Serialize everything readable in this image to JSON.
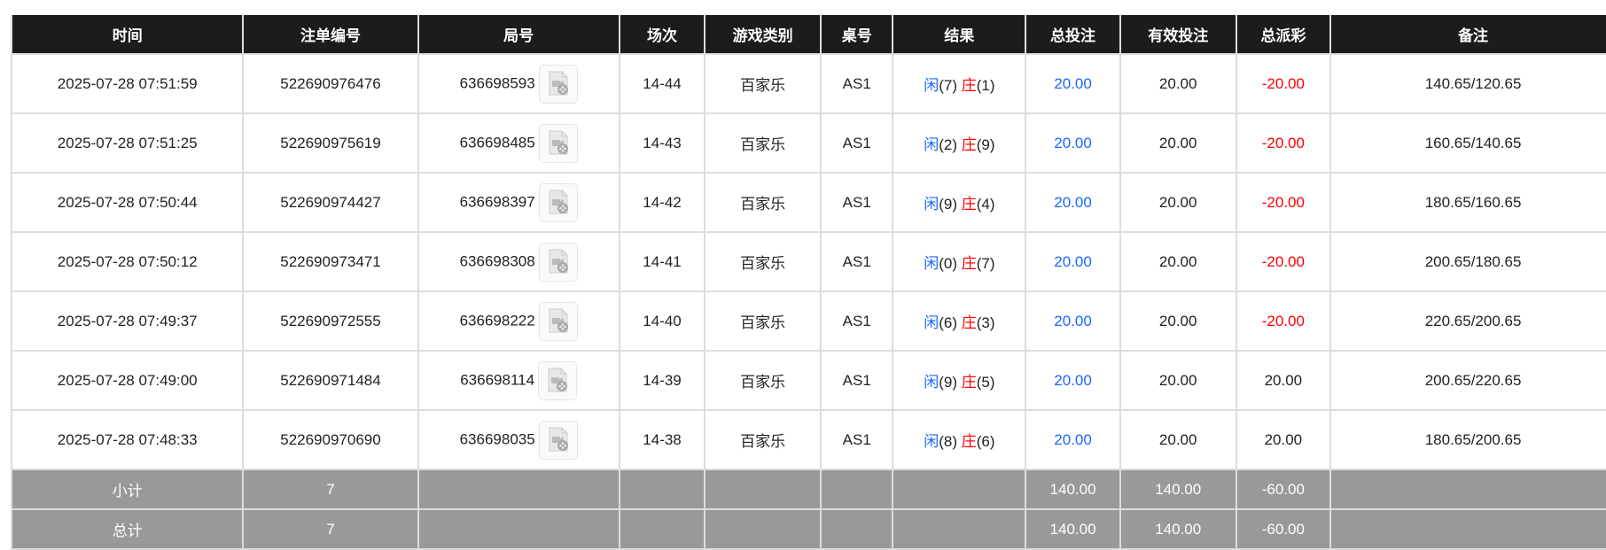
{
  "headers": [
    "时间",
    "注单编号",
    "局号",
    "场次",
    "游戏类别",
    "桌号",
    "结果",
    "总投注",
    "有效投注",
    "总派彩",
    "备注"
  ],
  "rows": [
    {
      "time": "2025-07-28 07:51:59",
      "bet_id": "522690976476",
      "round": "636698593",
      "session": "14-44",
      "game": "百家乐",
      "table": "AS1",
      "player_label": "闲",
      "player": "(7)",
      "banker_label": "庄",
      "banker": "(1)",
      "total_bet": "20.00",
      "valid_bet": "20.00",
      "payout": "-20.00",
      "payout_negative": true,
      "note": "140.65/120.65"
    },
    {
      "time": "2025-07-28 07:51:25",
      "bet_id": "522690975619",
      "round": "636698485",
      "session": "14-43",
      "game": "百家乐",
      "table": "AS1",
      "player_label": "闲",
      "player": "(2)",
      "banker_label": "庄",
      "banker": "(9)",
      "total_bet": "20.00",
      "valid_bet": "20.00",
      "payout": "-20.00",
      "payout_negative": true,
      "note": "160.65/140.65"
    },
    {
      "time": "2025-07-28 07:50:44",
      "bet_id": "522690974427",
      "round": "636698397",
      "session": "14-42",
      "game": "百家乐",
      "table": "AS1",
      "player_label": "闲",
      "player": "(9)",
      "banker_label": "庄",
      "banker": "(4)",
      "total_bet": "20.00",
      "valid_bet": "20.00",
      "payout": "-20.00",
      "payout_negative": true,
      "note": "180.65/160.65"
    },
    {
      "time": "2025-07-28 07:50:12",
      "bet_id": "522690973471",
      "round": "636698308",
      "session": "14-41",
      "game": "百家乐",
      "table": "AS1",
      "player_label": "闲",
      "player": "(0)",
      "banker_label": "庄",
      "banker": "(7)",
      "total_bet": "20.00",
      "valid_bet": "20.00",
      "payout": "-20.00",
      "payout_negative": true,
      "note": "200.65/180.65"
    },
    {
      "time": "2025-07-28 07:49:37",
      "bet_id": "522690972555",
      "round": "636698222",
      "session": "14-40",
      "game": "百家乐",
      "table": "AS1",
      "player_label": "闲",
      "player": "(6)",
      "banker_label": "庄",
      "banker": "(3)",
      "total_bet": "20.00",
      "valid_bet": "20.00",
      "payout": "-20.00",
      "payout_negative": true,
      "note": "220.65/200.65"
    },
    {
      "time": "2025-07-28 07:49:00",
      "bet_id": "522690971484",
      "round": "636698114",
      "session": "14-39",
      "game": "百家乐",
      "table": "AS1",
      "player_label": "闲",
      "player": "(9)",
      "banker_label": "庄",
      "banker": "(5)",
      "total_bet": "20.00",
      "valid_bet": "20.00",
      "payout": "20.00",
      "payout_negative": false,
      "note": "200.65/220.65"
    },
    {
      "time": "2025-07-28 07:48:33",
      "bet_id": "522690970690",
      "round": "636698035",
      "session": "14-38",
      "game": "百家乐",
      "table": "AS1",
      "player_label": "闲",
      "player": "(8)",
      "banker_label": "庄",
      "banker": "(6)",
      "total_bet": "20.00",
      "valid_bet": "20.00",
      "payout": "20.00",
      "payout_negative": false,
      "note": "180.65/200.65"
    }
  ],
  "subtotal": {
    "label": "小计",
    "count": "7",
    "total_bet": "140.00",
    "valid_bet": "140.00",
    "payout": "-60.00"
  },
  "total": {
    "label": "总计",
    "count": "7",
    "total_bet": "140.00",
    "valid_bet": "140.00",
    "payout": "-60.00"
  },
  "colors": {
    "header_bg": "#1c1c1c",
    "player": "#1a66ff",
    "banker": "#ff0000",
    "negative": "#ff0000",
    "summary_bg": "#999999"
  },
  "icons": {
    "replay": "video-file-icon"
  }
}
